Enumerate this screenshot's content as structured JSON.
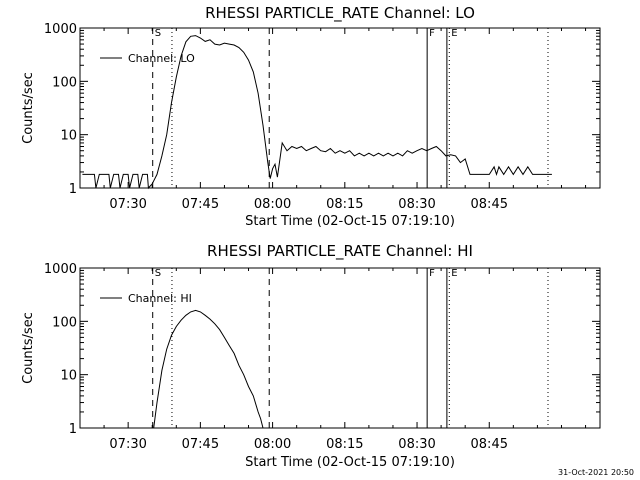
{
  "footer": {
    "timestamp": "31-Oct-2021 20:50"
  },
  "colors": {
    "background": "#ffffff",
    "foreground": "#000000"
  },
  "chart_data": [
    {
      "type": "line",
      "title": "RHESSI PARTICLE_RATE Channel: LO",
      "xlabel": "Start Time (02-Oct-15 07:19:10)",
      "ylabel": "Counts/sec",
      "x_tick_labels": [
        "07:30",
        "07:45",
        "08:00",
        "08:15",
        "08:30",
        "08:45"
      ],
      "x_ticks_min": [
        30,
        45,
        60,
        75,
        90,
        105
      ],
      "y_tick_labels": [
        "1",
        "10",
        "100",
        "1000"
      ],
      "y_ticks": [
        1,
        10,
        100,
        1000
      ],
      "ylog": true,
      "ylim": [
        1,
        1000
      ],
      "xlim_min": [
        20,
        128
      ],
      "legend": "top-left",
      "series": [
        {
          "name": "Channel: LO",
          "points": [
            [
              20.5,
              1.8
            ],
            [
              23,
              1.8
            ],
            [
              23.3,
              1
            ],
            [
              24,
              1.8
            ],
            [
              26,
              1.8
            ],
            [
              26.3,
              1
            ],
            [
              27,
              1.8
            ],
            [
              28,
              1.8
            ],
            [
              28.3,
              1
            ],
            [
              29,
              1.8
            ],
            [
              30,
              1.8
            ],
            [
              30.3,
              1
            ],
            [
              31,
              1.8
            ],
            [
              32,
              1.8
            ],
            [
              32.3,
              1
            ],
            [
              33,
              1.8
            ],
            [
              34,
              1.8
            ],
            [
              34.2,
              1
            ],
            [
              35,
              1.2
            ],
            [
              36,
              1.8
            ],
            [
              37,
              4
            ],
            [
              38,
              10
            ],
            [
              39,
              40
            ],
            [
              40,
              120
            ],
            [
              41,
              300
            ],
            [
              42,
              550
            ],
            [
              43,
              700
            ],
            [
              44,
              720
            ],
            [
              45,
              650
            ],
            [
              46,
              560
            ],
            [
              47,
              600
            ],
            [
              48,
              500
            ],
            [
              49,
              480
            ],
            [
              50,
              520
            ],
            [
              51,
              500
            ],
            [
              52,
              480
            ],
            [
              53,
              430
            ],
            [
              54,
              350
            ],
            [
              55,
              250
            ],
            [
              56,
              150
            ],
            [
              57,
              60
            ],
            [
              58,
              15
            ],
            [
              59,
              3
            ],
            [
              59.5,
              1.5
            ],
            [
              60,
              2.3
            ],
            [
              60.5,
              2.8
            ],
            [
              61,
              1.6
            ],
            [
              62,
              7
            ],
            [
              63,
              5
            ],
            [
              64,
              6
            ],
            [
              65,
              5.5
            ],
            [
              66,
              6
            ],
            [
              67,
              5
            ],
            [
              68,
              5.5
            ],
            [
              69,
              6
            ],
            [
              70,
              5
            ],
            [
              71,
              4.8
            ],
            [
              72,
              5.5
            ],
            [
              73,
              4.5
            ],
            [
              74,
              5
            ],
            [
              75,
              4.5
            ],
            [
              76,
              5
            ],
            [
              77,
              4
            ],
            [
              78,
              4.5
            ],
            [
              79,
              4
            ],
            [
              80,
              4.5
            ],
            [
              81,
              4
            ],
            [
              82,
              4.5
            ],
            [
              83,
              4
            ],
            [
              84,
              4.5
            ],
            [
              85,
              4
            ],
            [
              86,
              4.5
            ],
            [
              87,
              4
            ],
            [
              88,
              5
            ],
            [
              89,
              4.5
            ],
            [
              90,
              5
            ],
            [
              91,
              5.5
            ],
            [
              92,
              5
            ],
            [
              93,
              5.5
            ],
            [
              94,
              6
            ],
            [
              95,
              5
            ],
            [
              96,
              4
            ],
            [
              97,
              4.2
            ],
            [
              98,
              4
            ],
            [
              99,
              3
            ],
            [
              100,
              3.5
            ],
            [
              101,
              1.8
            ],
            [
              102,
              1.8
            ],
            [
              103,
              1.8
            ],
            [
              104,
              1.8
            ],
            [
              105,
              1.8
            ],
            [
              106,
              2.5
            ],
            [
              106.5,
              1.8
            ],
            [
              107,
              2.5
            ],
            [
              108,
              1.8
            ],
            [
              109,
              2.5
            ],
            [
              110,
              1.8
            ],
            [
              111,
              2.5
            ],
            [
              112,
              1.8
            ],
            [
              113,
              2.5
            ],
            [
              114,
              1.8
            ],
            [
              115,
              1.8
            ],
            [
              116,
              1.8
            ],
            [
              117,
              1.8
            ],
            [
              118,
              1.8
            ]
          ]
        }
      ],
      "markers": [
        {
          "label": "S",
          "x": 35.1,
          "style": "dashed"
        },
        {
          "label": "",
          "x": 59.3,
          "style": "dashed"
        },
        {
          "label": "",
          "x": 39.1,
          "style": "dotted"
        },
        {
          "label": "F",
          "x": 92.1,
          "style": "solid"
        },
        {
          "label": "",
          "x": 96.2,
          "style": "solid"
        },
        {
          "label": "E",
          "x": 96.7,
          "style": "dotted"
        },
        {
          "label": "",
          "x": 117.2,
          "style": "dotted"
        }
      ]
    },
    {
      "type": "line",
      "title": "RHESSI PARTICLE_RATE Channel: HI",
      "xlabel": "Start Time (02-Oct-15 07:19:10)",
      "ylabel": "Counts/sec",
      "x_tick_labels": [
        "07:30",
        "07:45",
        "08:00",
        "08:15",
        "08:30",
        "08:45"
      ],
      "x_ticks_min": [
        30,
        45,
        60,
        75,
        90,
        105
      ],
      "y_tick_labels": [
        "1",
        "10",
        "100",
        "1000"
      ],
      "y_ticks": [
        1,
        10,
        100,
        1000
      ],
      "ylog": true,
      "ylim": [
        1,
        1000
      ],
      "xlim_min": [
        20,
        128
      ],
      "legend": "top-left",
      "series": [
        {
          "name": "Channel: HI",
          "points": [
            [
              35.3,
              1
            ],
            [
              36,
              3
            ],
            [
              37,
              12
            ],
            [
              38,
              30
            ],
            [
              39,
              55
            ],
            [
              40,
              80
            ],
            [
              41,
              105
            ],
            [
              42,
              130
            ],
            [
              43,
              150
            ],
            [
              44,
              160
            ],
            [
              45,
              150
            ],
            [
              46,
              130
            ],
            [
              47,
              110
            ],
            [
              48,
              90
            ],
            [
              49,
              70
            ],
            [
              50,
              50
            ],
            [
              51,
              35
            ],
            [
              52,
              25
            ],
            [
              53,
              15
            ],
            [
              54,
              10
            ],
            [
              55,
              6
            ],
            [
              56,
              4
            ],
            [
              57,
              2
            ],
            [
              57.5,
              1.5
            ],
            [
              58,
              1
            ]
          ]
        }
      ],
      "markers": [
        {
          "label": "S",
          "x": 35.1,
          "style": "dashed"
        },
        {
          "label": "",
          "x": 59.3,
          "style": "dashed"
        },
        {
          "label": "",
          "x": 39.1,
          "style": "dotted"
        },
        {
          "label": "F",
          "x": 92.1,
          "style": "solid"
        },
        {
          "label": "",
          "x": 96.2,
          "style": "solid"
        },
        {
          "label": "E",
          "x": 96.7,
          "style": "dotted"
        },
        {
          "label": "",
          "x": 117.2,
          "style": "dotted"
        }
      ]
    }
  ]
}
